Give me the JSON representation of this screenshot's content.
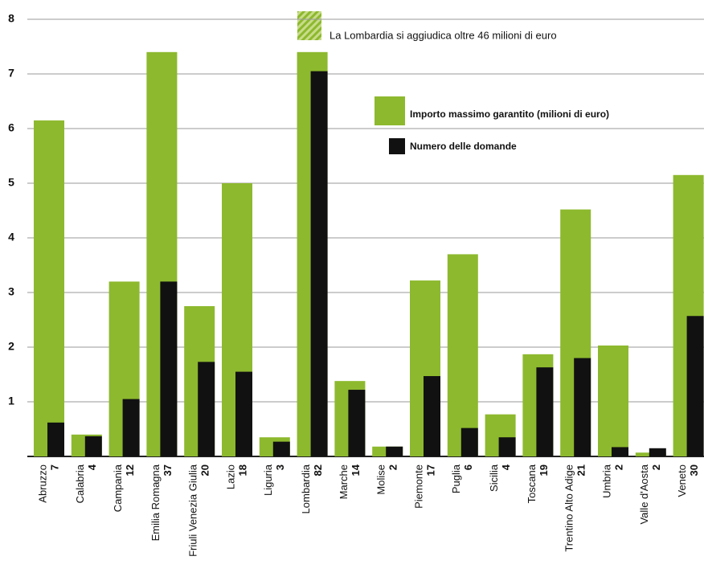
{
  "chart_data": {
    "type": "bar",
    "annotation": "La Lombardia si aggiudica oltre 46 milioni di euro",
    "categories": [
      "Abruzzo",
      "Calabria",
      "Campania",
      "Emilia Romagna",
      "Friuli Venezia Giulia",
      "Lazio",
      "Liguria",
      "Lombardia",
      "Marche",
      "Molise",
      "Piemonte",
      "Puglia",
      "Sicilia",
      "Toscana",
      "Trentino Alto Adige",
      "Umbria",
      "Valle d'Aosta",
      "Veneto"
    ],
    "category_counts": [
      7,
      4,
      12,
      37,
      20,
      18,
      3,
      82,
      14,
      2,
      17,
      6,
      4,
      19,
      21,
      2,
      2,
      30
    ],
    "series": [
      {
        "name": "Importo massimo garantito (milioni di euro)",
        "color": "#8db92e",
        "values": [
          6.15,
          0.4,
          3.2,
          7.4,
          2.75,
          5.0,
          0.35,
          7.4,
          1.38,
          0.18,
          3.22,
          3.7,
          0.77,
          1.87,
          4.52,
          2.03,
          0.07,
          5.15
        ]
      },
      {
        "name": "Numero delle domande",
        "color": "#111111",
        "values": [
          0.62,
          0.37,
          1.05,
          3.2,
          1.73,
          1.55,
          0.27,
          7.05,
          1.22,
          0.18,
          1.47,
          0.52,
          0.35,
          1.63,
          1.8,
          0.17,
          0.15,
          2.57
        ]
      }
    ],
    "ylim": [
      0,
      8
    ],
    "yticks": [
      1,
      2,
      3,
      4,
      5,
      6,
      7,
      8
    ],
    "grid": true
  }
}
